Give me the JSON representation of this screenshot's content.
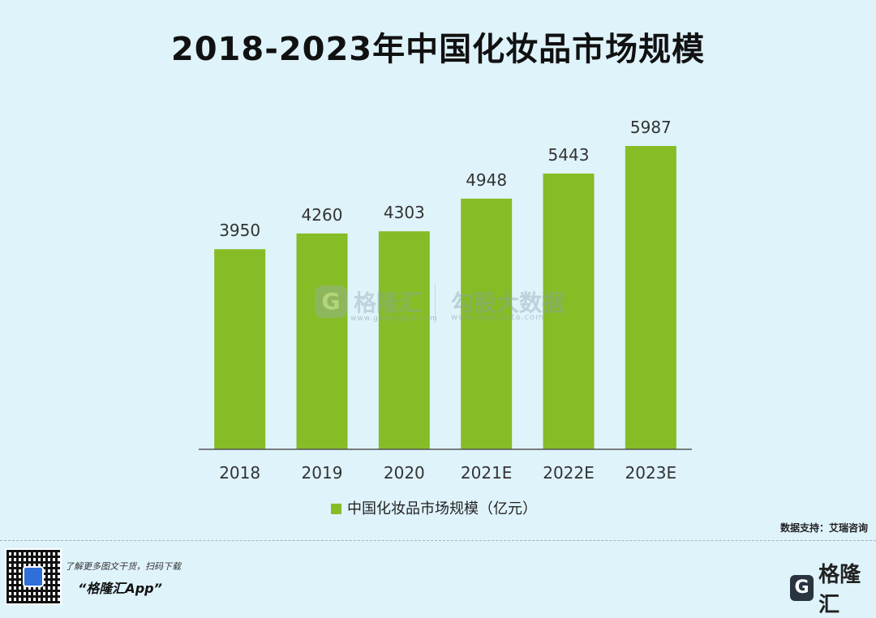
{
  "title": "2018-2023年中国化妆品市场规模",
  "chart_data": {
    "type": "bar",
    "categories": [
      "2018",
      "2019",
      "2020",
      "2021E",
      "2022E",
      "2023E"
    ],
    "values": [
      3950,
      4260,
      4303,
      4948,
      5443,
      5987
    ],
    "series": [
      {
        "name": "中国化妆品市场规模（亿元）",
        "values": [
          3950,
          4260,
          4303,
          4948,
          5443,
          5987
        ]
      }
    ],
    "ylim": [
      0,
      6200
    ],
    "grid": false,
    "legend_position": "bottom",
    "bar_color": "#86bc25"
  },
  "watermark": {
    "logo_glyph": "G",
    "brand": "格隆汇",
    "brand_url": "www.gelonghui.com",
    "brand2": "勾股大数据",
    "brand2_url": "www.gogudata.com"
  },
  "source": "数据支持：艾瑞咨询",
  "footer": {
    "note": "了解更多图文干货，扫码下载",
    "app": "“格隆汇App”",
    "logo_glyph": "G",
    "logo_text": "格隆汇"
  }
}
